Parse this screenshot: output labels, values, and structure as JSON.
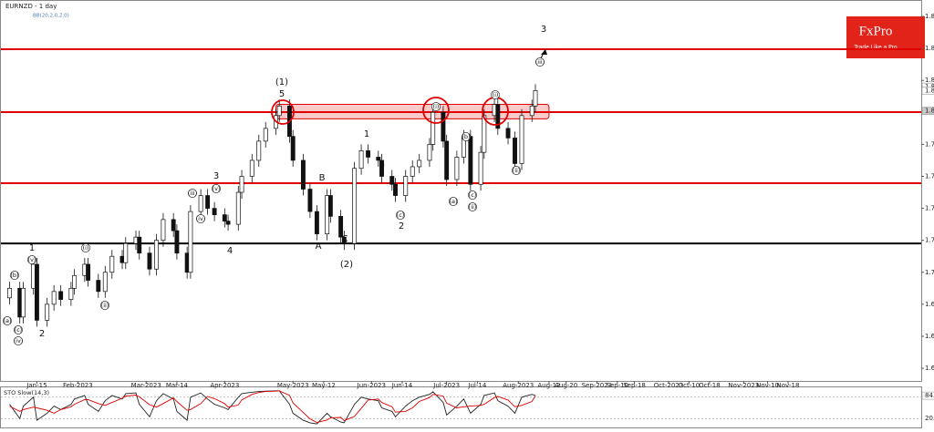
{
  "chart_data": {
    "type": "candlestick",
    "title": "EURNZD - 1 day",
    "subtitle": "BB(20,2,0,2.0)",
    "brand": "FxPro",
    "brand_tagline": "Trade Like a Pro",
    "x": [
      "2023-01-04",
      "2023-01-07",
      "2023-01-10",
      "2023-01-13",
      "2023-01-16",
      "2023-01-19",
      "2023-01-22",
      "2023-01-25",
      "2023-01-28",
      "2023-01-31",
      "2023-02-03",
      "2023-02-06",
      "2023-02-09",
      "2023-02-12",
      "2023-02-15",
      "2023-02-18",
      "2023-02-21",
      "2023-02-24",
      "2023-02-27",
      "2023-03-02",
      "2023-03-05",
      "2023-03-08",
      "2023-03-11",
      "2023-03-14",
      "2023-03-17",
      "2023-03-20",
      "2023-03-23",
      "2023-03-26",
      "2023-03-29",
      "2023-04-01",
      "2023-04-04",
      "2023-04-07",
      "2023-04-10",
      "2023-04-13",
      "2023-04-16",
      "2023-04-19",
      "2023-04-22",
      "2023-04-25",
      "2023-04-28",
      "2023-05-01",
      "2023-05-04",
      "2023-05-07",
      "2023-05-10",
      "2023-05-13",
      "2023-05-16",
      "2023-05-19",
      "2023-05-22",
      "2023-05-25",
      "2023-05-28",
      "2023-05-31",
      "2023-06-03",
      "2023-06-06",
      "2023-06-09",
      "2023-06-12",
      "2023-06-15",
      "2023-06-18",
      "2023-06-21",
      "2023-06-24",
      "2023-06-27",
      "2023-06-30",
      "2023-07-03",
      "2023-07-06",
      "2023-07-09",
      "2023-07-12",
      "2023-07-15",
      "2023-07-18",
      "2023-07-21",
      "2023-07-24",
      "2023-07-27",
      "2023-07-30",
      "2023-08-02",
      "2023-08-05",
      "2023-08-08"
    ],
    "open": [
      1.684,
      1.69,
      1.672,
      1.69,
      1.705,
      1.67,
      1.68,
      1.688,
      1.683,
      1.69,
      1.698,
      1.705,
      1.695,
      1.688,
      1.7,
      1.71,
      1.706,
      1.718,
      1.722,
      1.712,
      1.702,
      1.72,
      1.733,
      1.726,
      1.712,
      1.7,
      1.738,
      1.748,
      1.74,
      1.736,
      1.732,
      1.73,
      1.75,
      1.76,
      1.77,
      1.782,
      1.79,
      1.798,
      1.804,
      1.785,
      1.77,
      1.752,
      1.738,
      1.724,
      1.748,
      1.735,
      1.722,
      1.718,
      1.765,
      1.776,
      1.772,
      1.77,
      1.76,
      1.755,
      1.748,
      1.76,
      1.766,
      1.77,
      1.78,
      1.8,
      1.782,
      1.758,
      1.772,
      1.785,
      1.755,
      1.775,
      1.798,
      1.805,
      1.79,
      1.784,
      1.768,
      1.798,
      1.804
    ],
    "high": [
      1.694,
      1.694,
      1.694,
      1.709,
      1.709,
      1.684,
      1.692,
      1.692,
      1.694,
      1.702,
      1.709,
      1.709,
      1.699,
      1.704,
      1.714,
      1.714,
      1.722,
      1.726,
      1.726,
      1.716,
      1.724,
      1.737,
      1.737,
      1.73,
      1.716,
      1.742,
      1.752,
      1.752,
      1.744,
      1.74,
      1.736,
      1.754,
      1.764,
      1.774,
      1.786,
      1.794,
      1.802,
      1.808,
      1.808,
      1.789,
      1.774,
      1.756,
      1.742,
      1.752,
      1.752,
      1.739,
      1.726,
      1.769,
      1.78,
      1.78,
      1.776,
      1.774,
      1.764,
      1.759,
      1.764,
      1.77,
      1.774,
      1.784,
      1.804,
      1.804,
      1.786,
      1.776,
      1.789,
      1.789,
      1.779,
      1.802,
      1.809,
      1.809,
      1.794,
      1.788,
      1.802,
      1.808,
      1.8176
    ],
    "low": [
      1.68,
      1.668,
      1.668,
      1.686,
      1.666,
      1.666,
      1.676,
      1.679,
      1.679,
      1.686,
      1.694,
      1.691,
      1.684,
      1.684,
      1.696,
      1.702,
      1.702,
      1.714,
      1.708,
      1.698,
      1.698,
      1.716,
      1.722,
      1.708,
      1.696,
      1.696,
      1.734,
      1.736,
      1.732,
      1.728,
      1.726,
      1.726,
      1.746,
      1.756,
      1.766,
      1.778,
      1.786,
      1.794,
      1.781,
      1.766,
      1.748,
      1.734,
      1.72,
      1.72,
      1.731,
      1.718,
      1.714,
      1.714,
      1.761,
      1.768,
      1.766,
      1.756,
      1.751,
      1.744,
      1.744,
      1.756,
      1.762,
      1.766,
      1.776,
      1.778,
      1.754,
      1.754,
      1.768,
      1.751,
      1.751,
      1.771,
      1.794,
      1.786,
      1.78,
      1.764,
      1.764,
      1.794,
      1.8
    ],
    "close": [
      1.69,
      1.672,
      1.69,
      1.705,
      1.67,
      1.68,
      1.688,
      1.683,
      1.69,
      1.698,
      1.705,
      1.695,
      1.688,
      1.7,
      1.71,
      1.706,
      1.718,
      1.722,
      1.712,
      1.702,
      1.72,
      1.733,
      1.726,
      1.712,
      1.7,
      1.738,
      1.748,
      1.74,
      1.736,
      1.732,
      1.73,
      1.75,
      1.76,
      1.77,
      1.782,
      1.79,
      1.798,
      1.804,
      1.785,
      1.77,
      1.752,
      1.738,
      1.724,
      1.748,
      1.735,
      1.722,
      1.718,
      1.765,
      1.776,
      1.772,
      1.77,
      1.76,
      1.755,
      1.748,
      1.76,
      1.766,
      1.77,
      1.78,
      1.8,
      1.782,
      1.758,
      1.772,
      1.785,
      1.755,
      1.775,
      1.798,
      1.805,
      1.79,
      1.784,
      1.768,
      1.798,
      1.804,
      1.8136
    ],
    "up_color": "#ffffff",
    "down_color": "#111111",
    "xlim": [
      "2023-01-01",
      "2024-01-12"
    ],
    "xticks": [
      {
        "value": "2023-01-15",
        "label": "Jan-15"
      },
      {
        "value": "2023-02-01",
        "label": "Feb-2023"
      },
      {
        "value": "2023-03-01",
        "label": "Mar-2023"
      },
      {
        "value": "2023-03-14",
        "label": "Mar-14"
      },
      {
        "value": "2023-04-01",
        "label": "Apr-2023"
      },
      {
        "value": "2023-05-01",
        "label": "May-2023"
      },
      {
        "value": "2023-05-12",
        "label": "May-12"
      },
      {
        "value": "2023-06-01",
        "label": "Jun-2023"
      },
      {
        "value": "2023-06-14",
        "label": "Jun-14"
      },
      {
        "value": "2023-07-01",
        "label": "Jul-2023"
      },
      {
        "value": "2023-07-14",
        "label": "Jul-14"
      },
      {
        "value": "2023-08-01",
        "label": "Aug-2023"
      },
      {
        "value": "2023-08-12",
        "label": "Aug-12"
      },
      {
        "value": "2023-08-20",
        "label": "Aug-20"
      },
      {
        "value": "2023-09-01",
        "label": "Sep-2023"
      },
      {
        "value": "2023-09-10",
        "label": "Sep-10"
      },
      {
        "value": "2023-09-18",
        "label": "Sep-18"
      },
      {
        "value": "2023-10-01",
        "label": "Oct-2023"
      },
      {
        "value": "2023-10-10",
        "label": "Oct-10"
      },
      {
        "value": "2023-10-18",
        "label": "Oct-18"
      },
      {
        "value": "2023-11-01",
        "label": "Nov-2023"
      },
      {
        "value": "2023-11-10",
        "label": "Nov-10"
      },
      {
        "value": "2023-11-18",
        "label": "Nov-18"
      }
    ],
    "ylim": [
      1.6366,
      1.868
    ],
    "yticks": [
      {
        "value": 1.86,
        "label": "1.86000"
      },
      {
        "value": 1.84,
        "label": "1.84000"
      },
      {
        "value": 1.82,
        "label": "1.82000"
      },
      {
        "value": 1.78,
        "label": "1.78000"
      },
      {
        "value": 1.76,
        "label": "1.76000"
      },
      {
        "value": 1.74,
        "label": "1.74000"
      },
      {
        "value": 1.72,
        "label": "1.72000"
      },
      {
        "value": 1.7,
        "label": "1.70000"
      },
      {
        "value": 1.68,
        "label": "1.68000"
      },
      {
        "value": 1.66,
        "label": "1.66000"
      },
      {
        "value": 1.64,
        "label": "1.64000"
      }
    ],
    "price_marks": [
      {
        "value": 1.81604,
        "label": "1.81604"
      },
      {
        "value": 1.81356,
        "label": "1.81356"
      },
      {
        "value": 1.80097,
        "label": "1.80097"
      }
    ],
    "levels": [
      {
        "value": 1.8395,
        "color": "#e00000"
      },
      {
        "value": 1.8002,
        "color": "#e00000"
      },
      {
        "value": 1.7557,
        "color": "#e00000"
      },
      {
        "value": 1.718,
        "color": "#000000"
      }
    ],
    "zone": {
      "low": 1.796,
      "high": 1.805,
      "start": "2023-04-24",
      "end": "2023-08-14",
      "color": "#f4a0a0"
    },
    "wave_labels": [
      "1",
      "(v)",
      "(b)",
      "(a)",
      "(c)",
      "(iv)",
      "2",
      "(i)",
      "(ii)",
      "(iii)",
      "(iv)",
      "(v)",
      "3",
      "4",
      "(1)",
      "5",
      "A",
      "B",
      "C",
      "(2)",
      "1",
      "a",
      "(c)",
      "2",
      "(i)",
      "(a)",
      "(b)",
      "(c)",
      "(ii)",
      "(i)",
      "(ii)",
      "(iii)",
      "3"
    ],
    "indicator": {
      "type": "line",
      "title": "STO Slow(14,3)",
      "ylim": [
        0,
        100
      ],
      "yticks": [
        {
          "value": 80,
          "label": "80.0"
        },
        {
          "value": 20,
          "label": "20.0"
        }
      ],
      "series": [
        {
          "name": "%K",
          "color": "#222222",
          "values": [
            60,
            20,
            55,
            80,
            15,
            35,
            55,
            45,
            60,
            75,
            85,
            60,
            40,
            70,
            85,
            75,
            90,
            92,
            60,
            25,
            70,
            90,
            75,
            40,
            15,
            80,
            92,
            75,
            60,
            50,
            45,
            80,
            90,
            94,
            96,
            97,
            98,
            98,
            60,
            35,
            15,
            8,
            5,
            35,
            25,
            10,
            8,
            60,
            80,
            75,
            70,
            50,
            40,
            25,
            55,
            70,
            80,
            88,
            95,
            65,
            30,
            55,
            75,
            35,
            60,
            85,
            92,
            70,
            55,
            35,
            80,
            88,
            84.4
          ]
        },
        {
          "name": "%D",
          "color": "#e00000",
          "values": [
            55,
            40,
            45,
            52,
            50,
            43,
            35,
            45,
            53,
            60,
            73,
            73,
            62,
            57,
            65,
            77,
            83,
            86,
            81,
            59,
            52,
            62,
            78,
            68,
            43,
            45,
            62,
            82,
            76,
            62,
            52,
            58,
            72,
            88,
            93,
            96,
            97,
            98,
            85,
            64,
            37,
            19,
            9,
            16,
            22,
            23,
            14,
            26,
            49,
            72,
            75,
            65,
            53,
            38,
            40,
            50,
            68,
            79,
            88,
            83,
            63,
            50,
            53,
            55,
            57,
            60,
            79,
            82,
            72,
            53,
            57,
            68,
            84.1
          ]
        }
      ]
    }
  }
}
